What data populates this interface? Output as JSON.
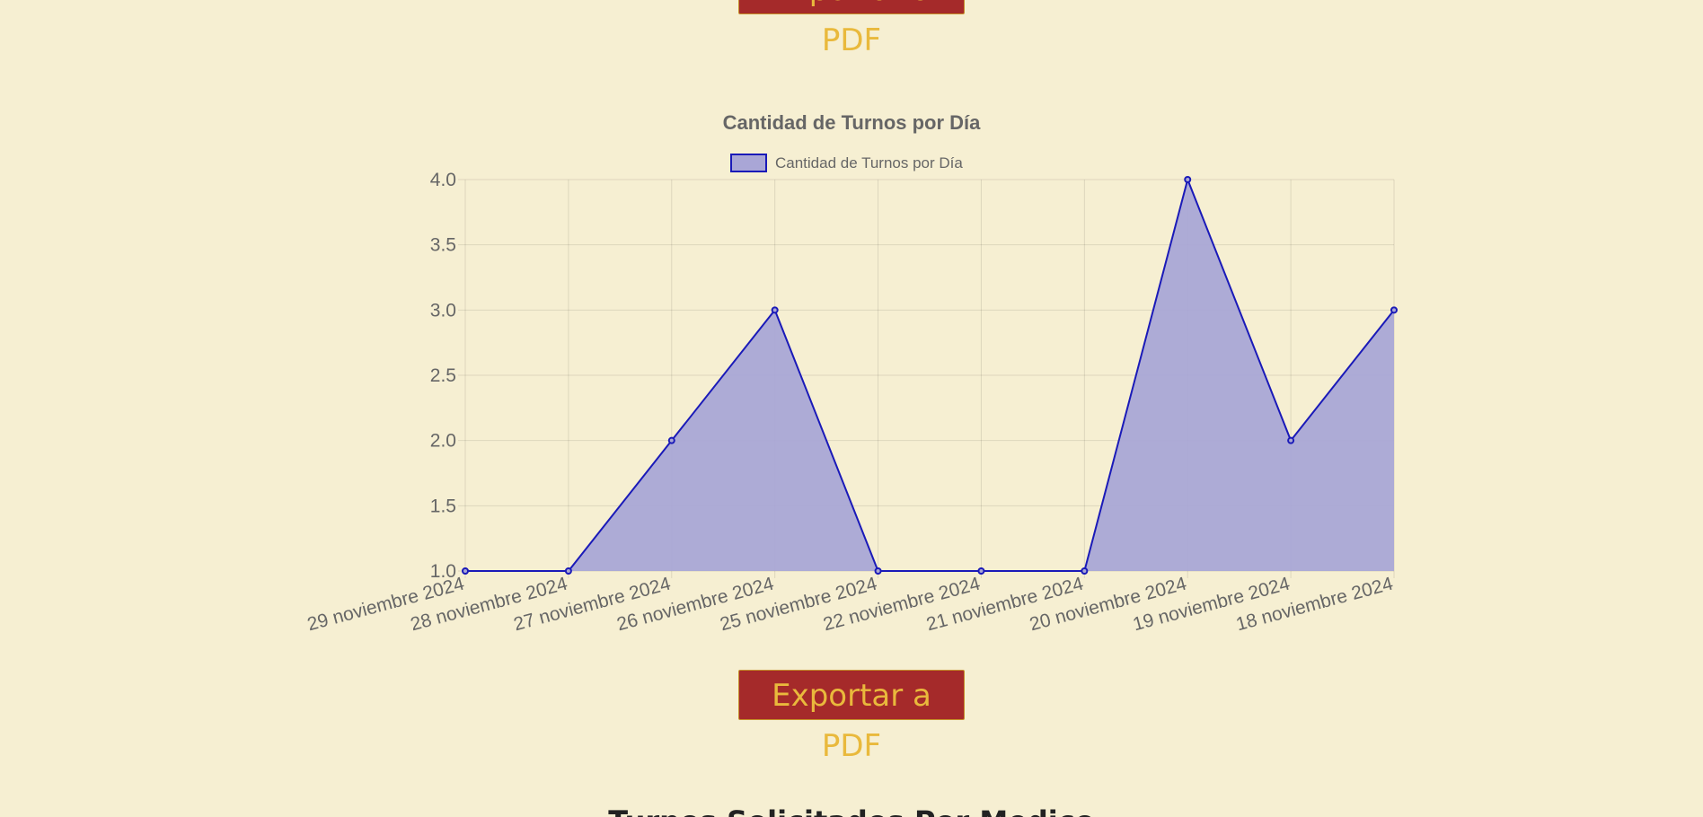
{
  "buttons": {
    "export_top_label": "Exportar a PDF",
    "export_bottom_label": "Exportar a PDF"
  },
  "next_section": {
    "heading": "Turnos Solicitados Por Medico"
  },
  "colors": {
    "background": "#f6efd2",
    "series_line": "#1a1ab8",
    "series_fill": "#a9a6d6",
    "button_bg": "#a52a2a",
    "button_text": "#e9b93c"
  },
  "chart_data": {
    "type": "area",
    "title": "Cantidad de Turnos por Día",
    "legend_position": "top",
    "grid": true,
    "x": [
      "29 noviembre 2024",
      "28 noviembre 2024",
      "27 noviembre 2024",
      "26 noviembre 2024",
      "25 noviembre 2024",
      "22 noviembre 2024",
      "21 noviembre 2024",
      "20 noviembre 2024",
      "19 noviembre 2024",
      "18 noviembre 2024"
    ],
    "series": [
      {
        "name": "Cantidad de Turnos por Día",
        "values": [
          1,
          1,
          2,
          3,
          1,
          1,
          1,
          4,
          2,
          3
        ]
      }
    ],
    "ylim": [
      1.0,
      4.0
    ],
    "yticks": [
      "1.0",
      "1.5",
      "2.0",
      "2.5",
      "3.0",
      "3.5",
      "4.0"
    ]
  }
}
